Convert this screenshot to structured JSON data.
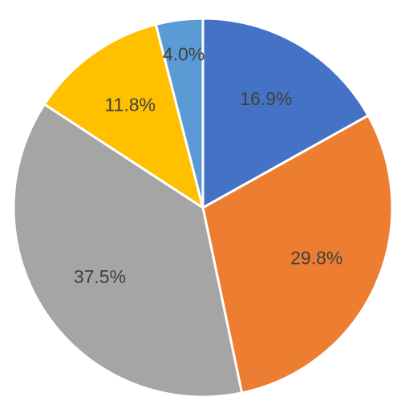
{
  "chart_data": {
    "type": "pie",
    "values": [
      16.9,
      29.8,
      37.5,
      11.8,
      4.0
    ],
    "value_labels": [
      "16.9%",
      "29.8%",
      "37.5%",
      "11.8%",
      "4.0%"
    ],
    "colors": [
      "#4472c4",
      "#ed7d31",
      "#a5a5a5",
      "#ffc000",
      "#5b9bd5"
    ]
  }
}
